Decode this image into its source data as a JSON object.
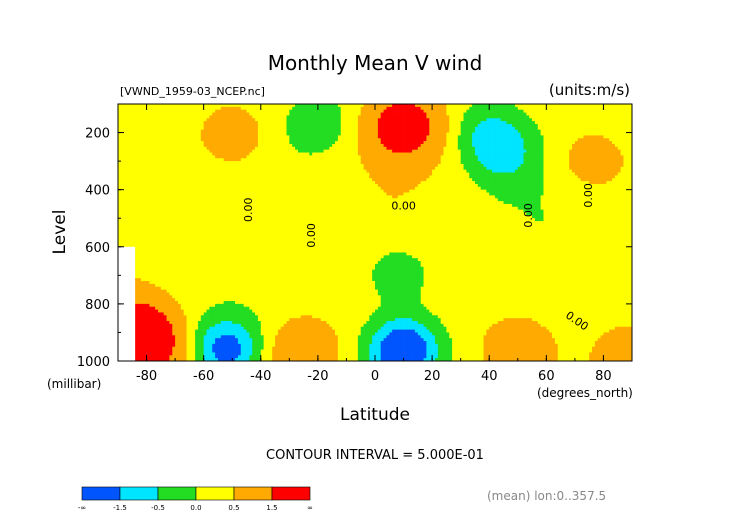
{
  "chart_data": {
    "type": "heatmap",
    "title": "Monthly Mean V wind",
    "file_label": "[VWND_1959-03_NCEP.nc]",
    "units_label": "(units:m/s)",
    "xlabel": "Latitude",
    "x_units": "(degrees_north)",
    "ylabel": "Level",
    "y_units": "(millibar)",
    "xlim": [
      -90,
      90
    ],
    "ylim": [
      1000,
      100
    ],
    "x_ticks": [
      -80,
      -60,
      -40,
      -20,
      0,
      20,
      40,
      60,
      80
    ],
    "y_ticks": [
      200,
      400,
      600,
      800,
      1000
    ],
    "contour_interval_text": "CONTOUR INTERVAL = 5.000E-01",
    "footnote": "(mean) lon:0..357.5",
    "zero_contour_label": "0.00",
    "colorbar": {
      "labels": [
        "-∞",
        "-1.5",
        "-0.5",
        "0.0",
        "0.5",
        "1.5",
        "∞"
      ],
      "colors": [
        "#0055ff",
        "#00e5ff",
        "#22dd22",
        "#ffff00",
        "#ffaa00",
        "#ff0000"
      ],
      "bounds": [
        -2,
        -1,
        0,
        0.5,
        1,
        2
      ]
    },
    "features": [
      {
        "lat": 10,
        "p": 180,
        "value": 2.2
      },
      {
        "lat": -50,
        "p": 220,
        "value": 0.7
      },
      {
        "lat": -20,
        "p": 170,
        "value": -0.6
      },
      {
        "lat": 40,
        "p": 200,
        "value": -0.7
      },
      {
        "lat": 8,
        "p": 690,
        "value": -0.7
      },
      {
        "lat": -84,
        "p": 900,
        "value": 2.6
      },
      {
        "lat": -78,
        "p": 960,
        "value": 1.2
      },
      {
        "lat": -52,
        "p": 960,
        "value": -1.6
      },
      {
        "lat": 10,
        "p": 960,
        "value": -1.9
      },
      {
        "lat": -25,
        "p": 970,
        "value": 1.0
      },
      {
        "lat": 50,
        "p": 950,
        "value": 0.7
      },
      {
        "lat": 88,
        "p": 980,
        "value": 0.6
      },
      {
        "lat": 45,
        "p": 280,
        "value": -0.7
      },
      {
        "lat": 75,
        "p": 300,
        "value": 0.6
      }
    ]
  }
}
